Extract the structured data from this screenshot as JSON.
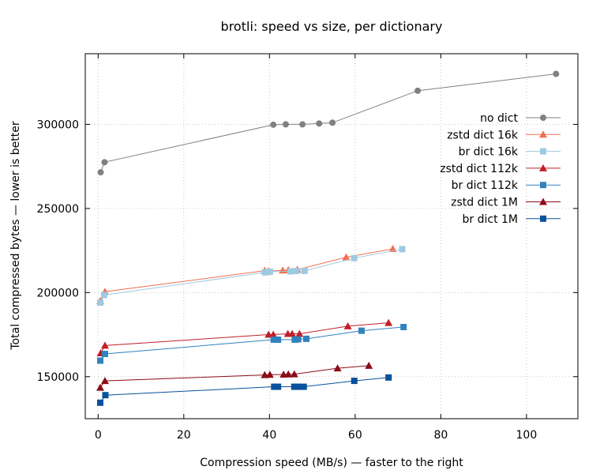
{
  "chart_data": {
    "type": "line",
    "title": "brotli: speed vs size, per dictionary",
    "xlabel": "Compression speed (MB/s) — faster to the right",
    "ylabel": "Total compressed bytes — lower is better",
    "xlim": [
      -3,
      112
    ],
    "ylim": [
      125000,
      342000
    ],
    "xticks": [
      0,
      20,
      40,
      60,
      80,
      100
    ],
    "yticks": [
      150000,
      200000,
      250000,
      300000
    ],
    "grid": true,
    "legend_position": "top-right",
    "series": [
      {
        "name": "no dict",
        "color": "#808080",
        "marker": "circle",
        "points": [
          [
            0.6,
            271500
          ],
          [
            1.5,
            277500
          ],
          [
            40.9,
            299800
          ],
          [
            43.8,
            300000
          ],
          [
            47.7,
            300000
          ],
          [
            51.6,
            300500
          ],
          [
            54.7,
            301000
          ],
          [
            74.6,
            320000
          ],
          [
            106.9,
            330000
          ]
        ]
      },
      {
        "name": "zstd dict 16k",
        "color": "#f07050",
        "marker": "triangle",
        "points": [
          [
            0.5,
            195000
          ],
          [
            1.6,
            200500
          ],
          [
            38.9,
            213000
          ],
          [
            39.8,
            212800
          ],
          [
            43.1,
            213200
          ],
          [
            44.4,
            213400
          ],
          [
            46.5,
            213600
          ],
          [
            57.9,
            221000
          ],
          [
            68.8,
            226000
          ]
        ]
      },
      {
        "name": "br dict 16k",
        "color": "#9ecae1",
        "marker": "square",
        "points": [
          [
            0.5,
            194000
          ],
          [
            1.4,
            198500
          ],
          [
            39.0,
            212000
          ],
          [
            40.1,
            212400
          ],
          [
            44.9,
            212600
          ],
          [
            46.2,
            212800
          ],
          [
            48.2,
            212900
          ],
          [
            59.8,
            220500
          ],
          [
            71.0,
            225800
          ]
        ]
      },
      {
        "name": "zstd dict 112k",
        "color": "#c0202a",
        "marker": "triangle",
        "points": [
          [
            0.6,
            164000
          ],
          [
            1.6,
            168500
          ],
          [
            39.8,
            175000
          ],
          [
            40.9,
            175000
          ],
          [
            44.3,
            175500
          ],
          [
            45.3,
            175500
          ],
          [
            47.0,
            175500
          ],
          [
            58.3,
            180000
          ],
          [
            67.8,
            182000
          ]
        ]
      },
      {
        "name": "br dict 112k",
        "color": "#3182bd",
        "marker": "square",
        "points": [
          [
            0.5,
            159500
          ],
          [
            1.6,
            163500
          ],
          [
            41.0,
            172000
          ],
          [
            42.0,
            172000
          ],
          [
            45.9,
            172000
          ],
          [
            46.7,
            172200
          ],
          [
            48.6,
            172500
          ],
          [
            61.5,
            177300
          ],
          [
            71.3,
            179500
          ]
        ]
      },
      {
        "name": "zstd dict 1M",
        "color": "#8b0d16",
        "marker": "triangle",
        "points": [
          [
            0.5,
            143500
          ],
          [
            1.6,
            147500
          ],
          [
            38.9,
            151000
          ],
          [
            40.1,
            151200
          ],
          [
            43.3,
            151300
          ],
          [
            44.4,
            151400
          ],
          [
            45.8,
            151500
          ],
          [
            55.9,
            155000
          ],
          [
            63.2,
            156500
          ]
        ]
      },
      {
        "name": "br dict 1M",
        "color": "#08519c",
        "marker": "square",
        "points": [
          [
            0.5,
            134500
          ],
          [
            1.7,
            139000
          ],
          [
            41.1,
            144000
          ],
          [
            42.0,
            144000
          ],
          [
            45.8,
            144000
          ],
          [
            46.8,
            144000
          ],
          [
            48.0,
            144000
          ],
          [
            59.8,
            147500
          ],
          [
            67.8,
            149500
          ]
        ]
      }
    ]
  }
}
